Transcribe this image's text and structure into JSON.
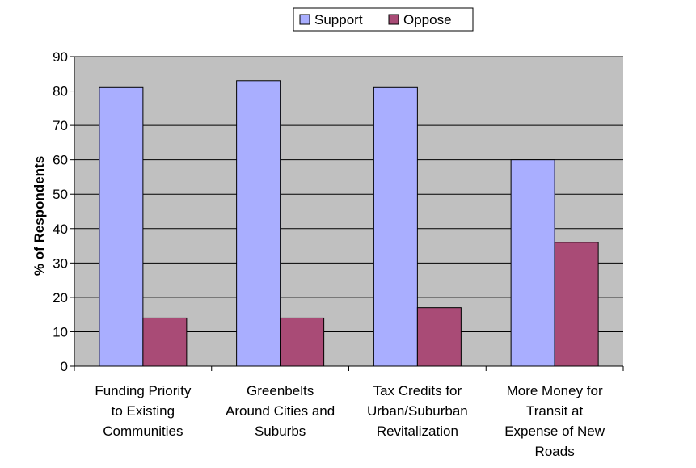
{
  "chart_data": {
    "type": "bar",
    "title": "",
    "xlabel": "",
    "ylabel": "% of Respondents",
    "ylim": [
      0,
      90
    ],
    "yticks": [
      0,
      10,
      20,
      30,
      40,
      50,
      60,
      70,
      80,
      90
    ],
    "categories": [
      [
        "Funding Priority",
        "to Existing",
        "Communities"
      ],
      [
        "Greenbelts",
        "Around Cities and",
        "Suburbs"
      ],
      [
        "Tax Credits for",
        "Urban/Suburban",
        "Revitalization"
      ],
      [
        "More Money for",
        "Transit at",
        "Expense of New",
        "Roads"
      ]
    ],
    "series": [
      {
        "name": "Support",
        "color": "#A9AEFF",
        "values": [
          81,
          83,
          81,
          60
        ]
      },
      {
        "name": "Oppose",
        "color": "#A94B76",
        "values": [
          14,
          14,
          17,
          36
        ]
      }
    ],
    "grid": true,
    "plot_background": "#C0C0C0",
    "legend_position": "top-center"
  }
}
